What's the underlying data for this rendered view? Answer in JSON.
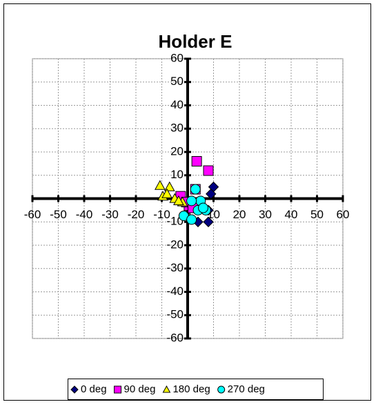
{
  "chart_data": {
    "type": "scatter",
    "title": "Holder E",
    "xlim": [
      -60,
      60
    ],
    "ylim": [
      -60,
      60
    ],
    "xticks": [
      -60,
      -50,
      -40,
      -30,
      -20,
      -10,
      0,
      10,
      20,
      30,
      40,
      50,
      60
    ],
    "yticks": [
      -60,
      -50,
      -40,
      -30,
      -20,
      -10,
      0,
      10,
      20,
      30,
      40,
      50,
      60
    ],
    "grid": true,
    "legend": "bottom",
    "series": [
      {
        "name": "0 deg",
        "color": "#000080",
        "marker": "diamond",
        "x": [
          10,
          9,
          8,
          4,
          8
        ],
        "y": [
          5,
          2,
          -5,
          -10,
          -10
        ]
      },
      {
        "name": "90 deg",
        "color": "#ff00ff",
        "marker": "square",
        "x": [
          3.5,
          8,
          -2.7,
          3,
          0.5,
          -0.5,
          2
        ],
        "y": [
          16,
          12,
          1,
          4,
          -3,
          -1.5,
          -4
        ]
      },
      {
        "name": "180 deg",
        "color": "#ffff00",
        "marker": "triangle",
        "x": [
          -10.7,
          -7,
          -9.6,
          -5,
          -8,
          -2,
          -3.5
        ],
        "y": [
          5.6,
          5,
          1,
          0,
          2,
          -1.5,
          -1
        ]
      },
      {
        "name": "270 deg",
        "color": "#00ffff",
        "marker": "circle",
        "x": [
          3,
          5,
          4,
          7,
          1.5,
          -1.5,
          1.5,
          6
        ],
        "y": [
          4,
          -1,
          -5,
          -5,
          -1,
          -7.4,
          -9,
          -4
        ]
      }
    ]
  }
}
